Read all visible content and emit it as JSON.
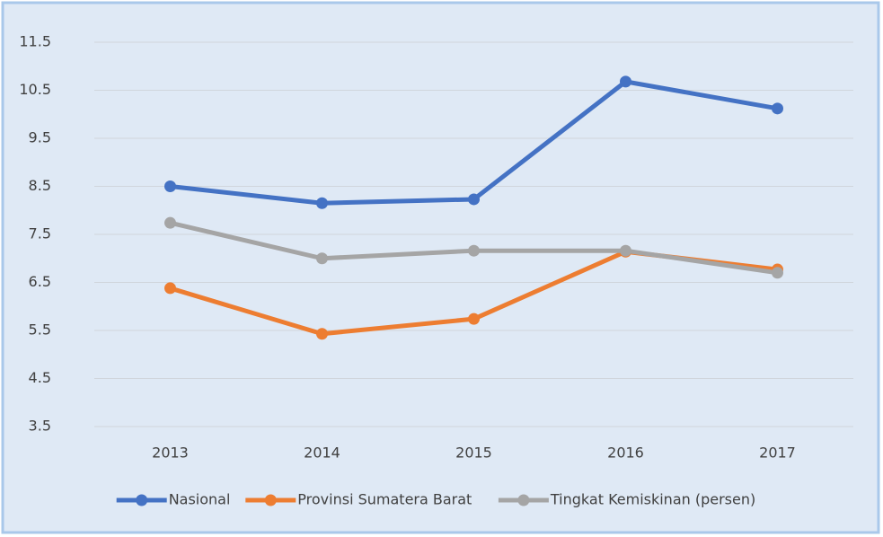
{
  "chart_data": {
    "type": "line",
    "categories": [
      "2013",
      "2014",
      "2015",
      "2016",
      "2017"
    ],
    "series": [
      {
        "name": "Nasional",
        "color": "#4472c4",
        "values": [
          8.5,
          8.15,
          8.23,
          10.68,
          10.12
        ]
      },
      {
        "name": "Provinsi Sumatera Barat",
        "color": "#ed7d31",
        "values": [
          6.38,
          5.43,
          5.74,
          7.14,
          6.77
        ]
      },
      {
        "name": "Tingkat Kemiskinan (persen)",
        "color": "#a5a5a5",
        "values": [
          7.74,
          7.0,
          7.16,
          7.16,
          6.7
        ]
      }
    ],
    "ylim": [
      3.5,
      11.5
    ],
    "yticks": [
      3.5,
      4.5,
      5.5,
      6.5,
      7.5,
      8.5,
      9.5,
      10.5,
      11.5
    ],
    "grid": true,
    "legend": "bottom"
  }
}
